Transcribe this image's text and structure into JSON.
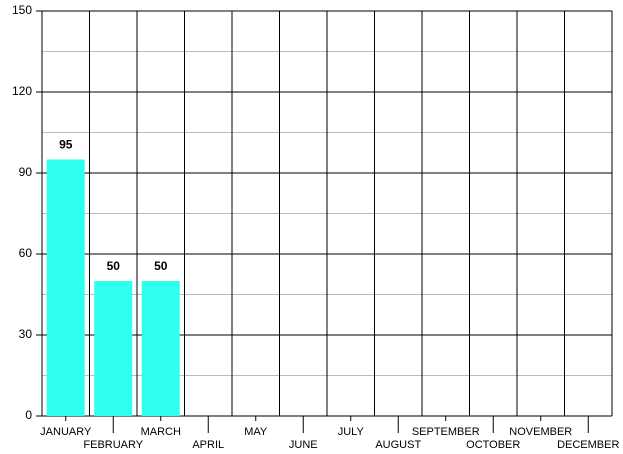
{
  "chart_data": {
    "type": "bar",
    "categories": [
      "JANUARY",
      "FEBRUARY",
      "MARCH",
      "APRIL",
      "MAY",
      "JUNE",
      "JULY",
      "AUGUST",
      "SEPTEMBER",
      "OCTOBER",
      "NOVEMBER",
      "DECEMBER"
    ],
    "values": [
      95,
      50,
      50,
      null,
      null,
      null,
      null,
      null,
      null,
      null,
      null,
      null
    ],
    "color": "#2effee",
    "ylim": [
      0,
      150
    ],
    "yticks": [
      0,
      30,
      60,
      90,
      120,
      150
    ],
    "minor_yticks": [
      15,
      45,
      75,
      105,
      135
    ],
    "grid": true,
    "data_labels": true
  }
}
